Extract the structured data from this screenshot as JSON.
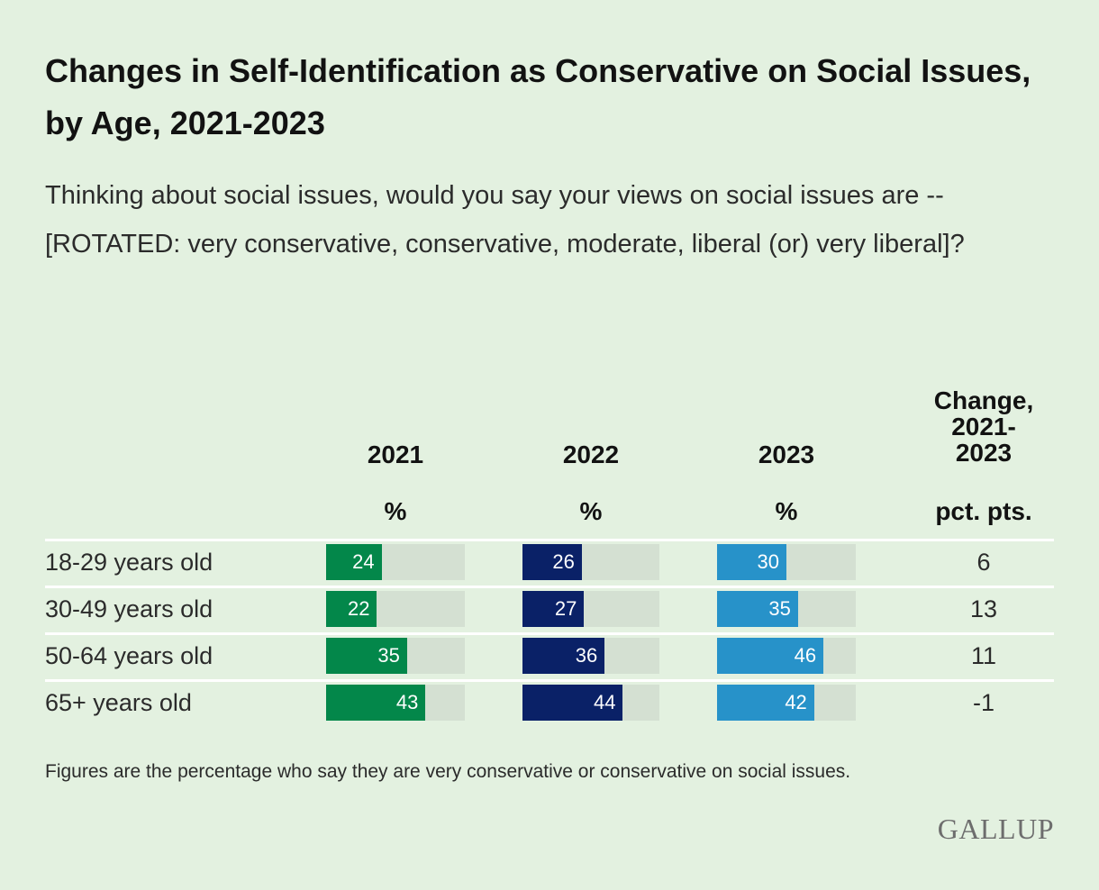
{
  "title": "Changes in Self-Identification as Conservative on Social Issues, by Age, 2021-2023",
  "subtitle": "Thinking about social issues, would you say your views on social issues are -- [ROTATED: very conservative, conservative, moderate, liberal (or) very liberal]?",
  "columns": {
    "y2021": "2021",
    "y2022": "2022",
    "y2023": "2023",
    "change_line1": "Change,",
    "change_line2": "2021-",
    "change_line3": "2023",
    "unit_pct": "%",
    "unit_change": "pct. pts."
  },
  "footnote": "Figures are the percentage who say they are very conservative or conservative on social issues.",
  "logo": "GALLUP",
  "colors": {
    "y2021": "#03874a",
    "y2022": "#0a2167",
    "y2023": "#2792c9",
    "track": "#d4e0d2"
  },
  "chart_data": {
    "type": "bar",
    "categories": [
      "18-29 years old",
      "30-49 years old",
      "50-64 years old",
      "65+ years old"
    ],
    "series": [
      {
        "name": "2021",
        "values": [
          24,
          22,
          35,
          43
        ]
      },
      {
        "name": "2022",
        "values": [
          26,
          27,
          36,
          44
        ]
      },
      {
        "name": "2023",
        "values": [
          30,
          35,
          46,
          42
        ]
      }
    ],
    "change": [
      "6",
      "13",
      "11",
      "-1"
    ],
    "ylim": [
      0,
      60
    ]
  }
}
